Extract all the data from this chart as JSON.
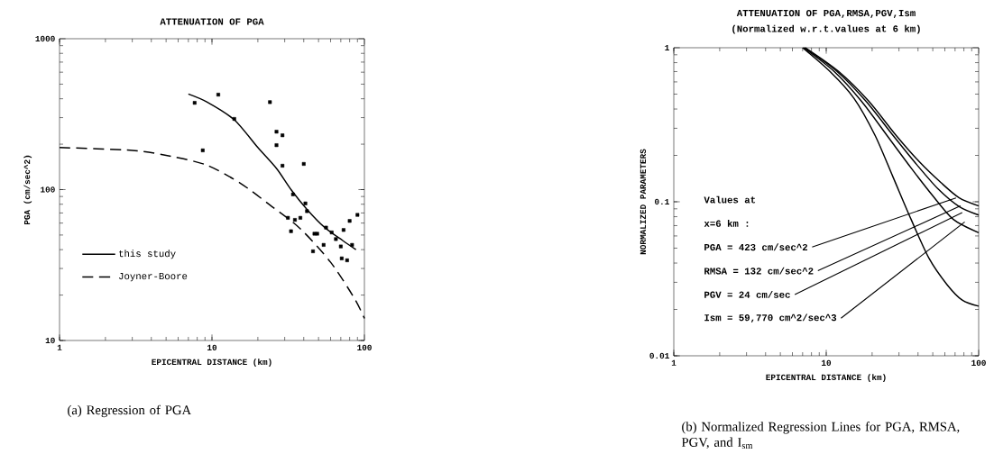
{
  "chart_data": [
    {
      "type": "line",
      "title": "ATTENUATION OF PGA",
      "xlabel": "EPICENTRAL DISTANCE (km)",
      "ylabel": "PGA (cm/sec^2)",
      "xlim": [
        1,
        100
      ],
      "ylim": [
        10,
        1000
      ],
      "xticks": [
        1,
        10,
        100
      ],
      "yticks": [
        10,
        100,
        1000
      ],
      "log": "xy",
      "legend": "bottom left",
      "annotations": [
        "(a) Regression of PGA"
      ],
      "series": [
        {
          "name": "this study",
          "line_style": "solid",
          "color": "#000000",
          "x": [
            7,
            9.3,
            14,
            20,
            26.5,
            33,
            42,
            55,
            72,
            88
          ],
          "values": [
            430,
            380,
            290,
            190,
            138,
            100,
            74,
            56,
            46,
            40
          ]
        },
        {
          "name": "Joyner-Boore",
          "line_style": "dashed",
          "color": "#000000",
          "x": [
            1,
            3,
            5.4,
            9.3,
            15.4,
            24,
            38,
            60,
            86,
            100
          ],
          "values": [
            190,
            182,
            166,
            145,
            110,
            79,
            55,
            33,
            19,
            14
          ]
        },
        {
          "type": "scatter",
          "marker": "square",
          "color": "#000000",
          "x": [
            7.7,
            11,
            14,
            8.7,
            24,
            26.5,
            29,
            26.5,
            29,
            40,
            34,
            41,
            42,
            31.5,
            35,
            38,
            33,
            47,
            49,
            54,
            46,
            56,
            61,
            65,
            70,
            73,
            80,
            90,
            71,
            77,
            83
          ],
          "values": [
            376,
            426,
            294,
            182,
            380,
            242,
            229,
            197,
            144,
            148,
            93,
            81,
            72,
            65,
            63,
            65,
            53,
            51,
            51,
            43,
            39,
            56,
            52,
            47,
            42,
            54,
            62,
            68,
            35,
            34,
            43
          ]
        }
      ]
    },
    {
      "type": "line",
      "title": "ATTENUATION OF PGA,RMSA,PGV,Ism",
      "subtitle": "(Normalized w.r.t.values at 6 km)",
      "xlabel": "EPICENTRAL DISTANCE (km)",
      "ylabel": "NORMALIZED PARAMETERS",
      "xlim": [
        1,
        100
      ],
      "ylim": [
        0.01,
        1
      ],
      "xticks": [
        1,
        10,
        100
      ],
      "yticks": [
        0.01,
        0.1,
        1
      ],
      "log": "xy",
      "annotations": [
        "Values at",
        "x=6 km :",
        {
          "text": "PGA = 423 cm/sec^2",
          "x": 71,
          "y": 0.106
        },
        {
          "text": "RMSA = 132 cm/sec^2",
          "x": 76,
          "y": 0.094
        },
        {
          "text": "PGV = 24 cm/sec",
          "x": 78,
          "y": 0.085
        },
        {
          "text": "Ism = 59,770 cm^2/sec^3",
          "x": 81,
          "y": 0.074
        },
        "(b) Normalized Regression Lines for PGA, RMSA, PGV, and I$_{sm}$"
      ],
      "series": [
        {
          "line_style": "solid",
          "color": "#000000",
          "x": [
            7.0,
            10.6,
            15.2,
            20.9,
            27.4,
            36,
            47.2,
            62,
            78,
            100
          ],
          "values": [
            1,
            0.7,
            0.47,
            0.27,
            0.145,
            0.077,
            0.043,
            0.029,
            0.023,
            0.021
          ]
        },
        {
          "line_style": "solid",
          "color": "#000000",
          "x": [
            7.3,
            12.1,
            19.0,
            28.7,
            41.2,
            56.6,
            74.5,
            100
          ],
          "values": [
            1,
            0.7,
            0.45,
            0.27,
            0.18,
            0.133,
            0.106,
            0.094
          ]
        },
        {
          "line_style": "solid",
          "color": "#000000",
          "x": [
            7.2,
            11.8,
            18.2,
            27.4,
            39.3,
            54.2,
            74.5,
            100
          ],
          "values": [
            1,
            0.7,
            0.45,
            0.27,
            0.174,
            0.121,
            0.093,
            0.082
          ]
        },
        {
          "line_style": "solid",
          "color": "#000000",
          "x": [
            7.1,
            11.3,
            17.0,
            25.0,
            36,
            49.4,
            68,
            100
          ],
          "values": [
            1,
            0.7,
            0.45,
            0.27,
            0.166,
            0.111,
            0.077,
            0.063
          ]
        }
      ]
    }
  ]
}
